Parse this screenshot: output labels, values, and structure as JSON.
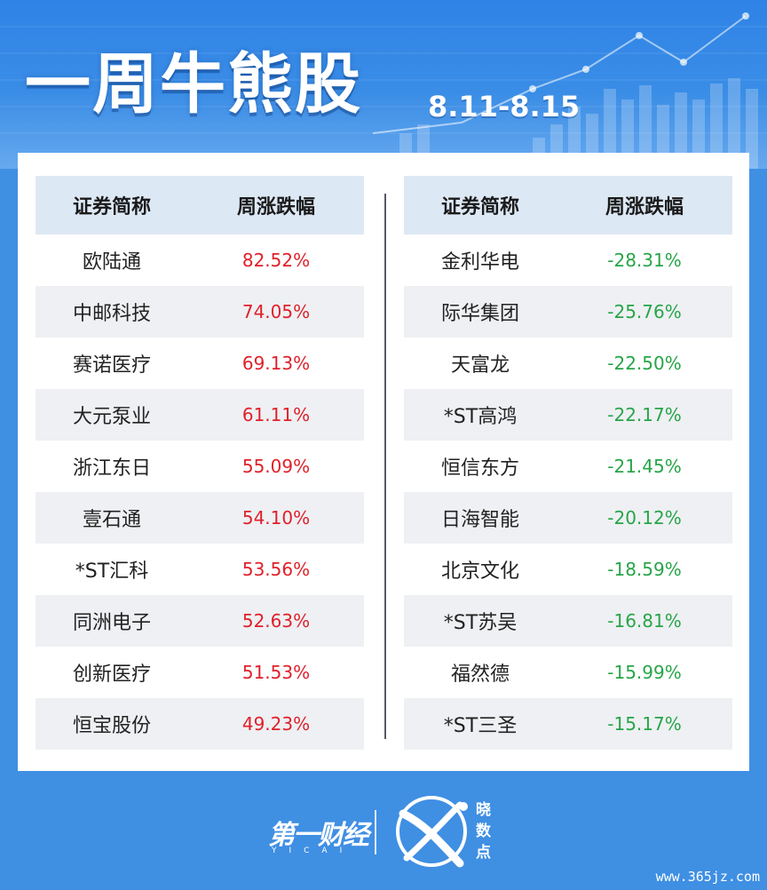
{
  "header": {
    "title": "一周牛熊股",
    "date_range": "8.11-8.15"
  },
  "left_table": {
    "headers": [
      "证券简称",
      "周涨跌幅"
    ],
    "rows": [
      {
        "name": "欧陆通",
        "change": "82.52%"
      },
      {
        "name": "中邮科技",
        "change": "74.05%"
      },
      {
        "name": "赛诺医疗",
        "change": "69.13%"
      },
      {
        "name": "大元泵业",
        "change": "61.11%"
      },
      {
        "name": "浙江东日",
        "change": "55.09%"
      },
      {
        "name": "壹石通",
        "change": "54.10%"
      },
      {
        "name": "*ST汇科",
        "change": "53.56%"
      },
      {
        "name": "同洲电子",
        "change": "52.63%"
      },
      {
        "name": "创新医疗",
        "change": "51.53%"
      },
      {
        "name": "恒宝股份",
        "change": "49.23%"
      }
    ]
  },
  "right_table": {
    "headers": [
      "证券简称",
      "周涨跌幅"
    ],
    "rows": [
      {
        "name": "金利华电",
        "change": "-28.31%"
      },
      {
        "name": "际华集团",
        "change": "-25.76%"
      },
      {
        "name": "天富龙",
        "change": "-22.50%"
      },
      {
        "name": "*ST高鸿",
        "change": "-22.17%"
      },
      {
        "name": "恒信东方",
        "change": "-21.45%"
      },
      {
        "name": "日海智能",
        "change": "-20.12%"
      },
      {
        "name": "北京文化",
        "change": "-18.59%"
      },
      {
        "name": "*ST苏吴",
        "change": "-16.81%"
      },
      {
        "name": "福然德",
        "change": "-15.99%"
      },
      {
        "name": "*ST三圣",
        "change": "-15.17%"
      }
    ]
  },
  "footer": {
    "brand": "第一财经",
    "brand_sub": "YICAI",
    "logo_text": [
      "晓",
      "数",
      "点"
    ],
    "watermark": "www.365jz.com"
  },
  "colors": {
    "background": "#3f8fe3",
    "header_row": "#dde8f5",
    "stripe": "#eef0f3",
    "rise": "#e0202a",
    "fall": "#27a548"
  },
  "icons": [
    "bar-chart-decoration-icon",
    "trend-line-icon",
    "xiaoshudian-logo-icon"
  ]
}
